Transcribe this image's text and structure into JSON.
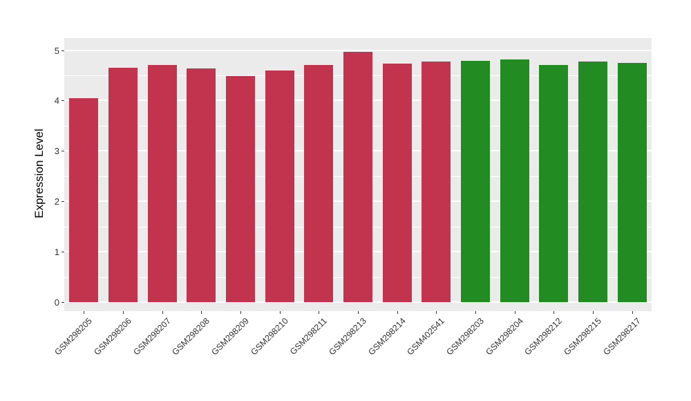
{
  "chart_data": {
    "type": "bar",
    "title": "",
    "xlabel": "",
    "ylabel": "Expression Level",
    "ylim": [
      0,
      5.45
    ],
    "yticks": [
      0,
      1,
      2,
      3,
      4,
      5
    ],
    "grid": true,
    "legend": "none",
    "panel_background": "#EBEBEB",
    "grid_color": "#FFFFFF",
    "categories": [
      "GSM298205",
      "GSM298206",
      "GSM298207",
      "GSM298208",
      "GSM298209",
      "GSM298210",
      "GSM298211",
      "GSM298213",
      "GSM298214",
      "GSM402541",
      "GSM298203",
      "GSM298204",
      "GSM298212",
      "GSM298215",
      "GSM298217"
    ],
    "values": [
      4.05,
      4.65,
      4.71,
      4.63,
      4.49,
      4.59,
      4.71,
      4.97,
      4.73,
      4.77,
      4.79,
      4.81,
      4.7,
      4.77,
      4.74
    ],
    "groups": [
      "red",
      "red",
      "red",
      "red",
      "red",
      "red",
      "red",
      "red",
      "red",
      "red",
      "green",
      "green",
      "green",
      "green",
      "green"
    ],
    "group_colors": {
      "red": "#C2334D",
      "green": "#228B22"
    }
  }
}
